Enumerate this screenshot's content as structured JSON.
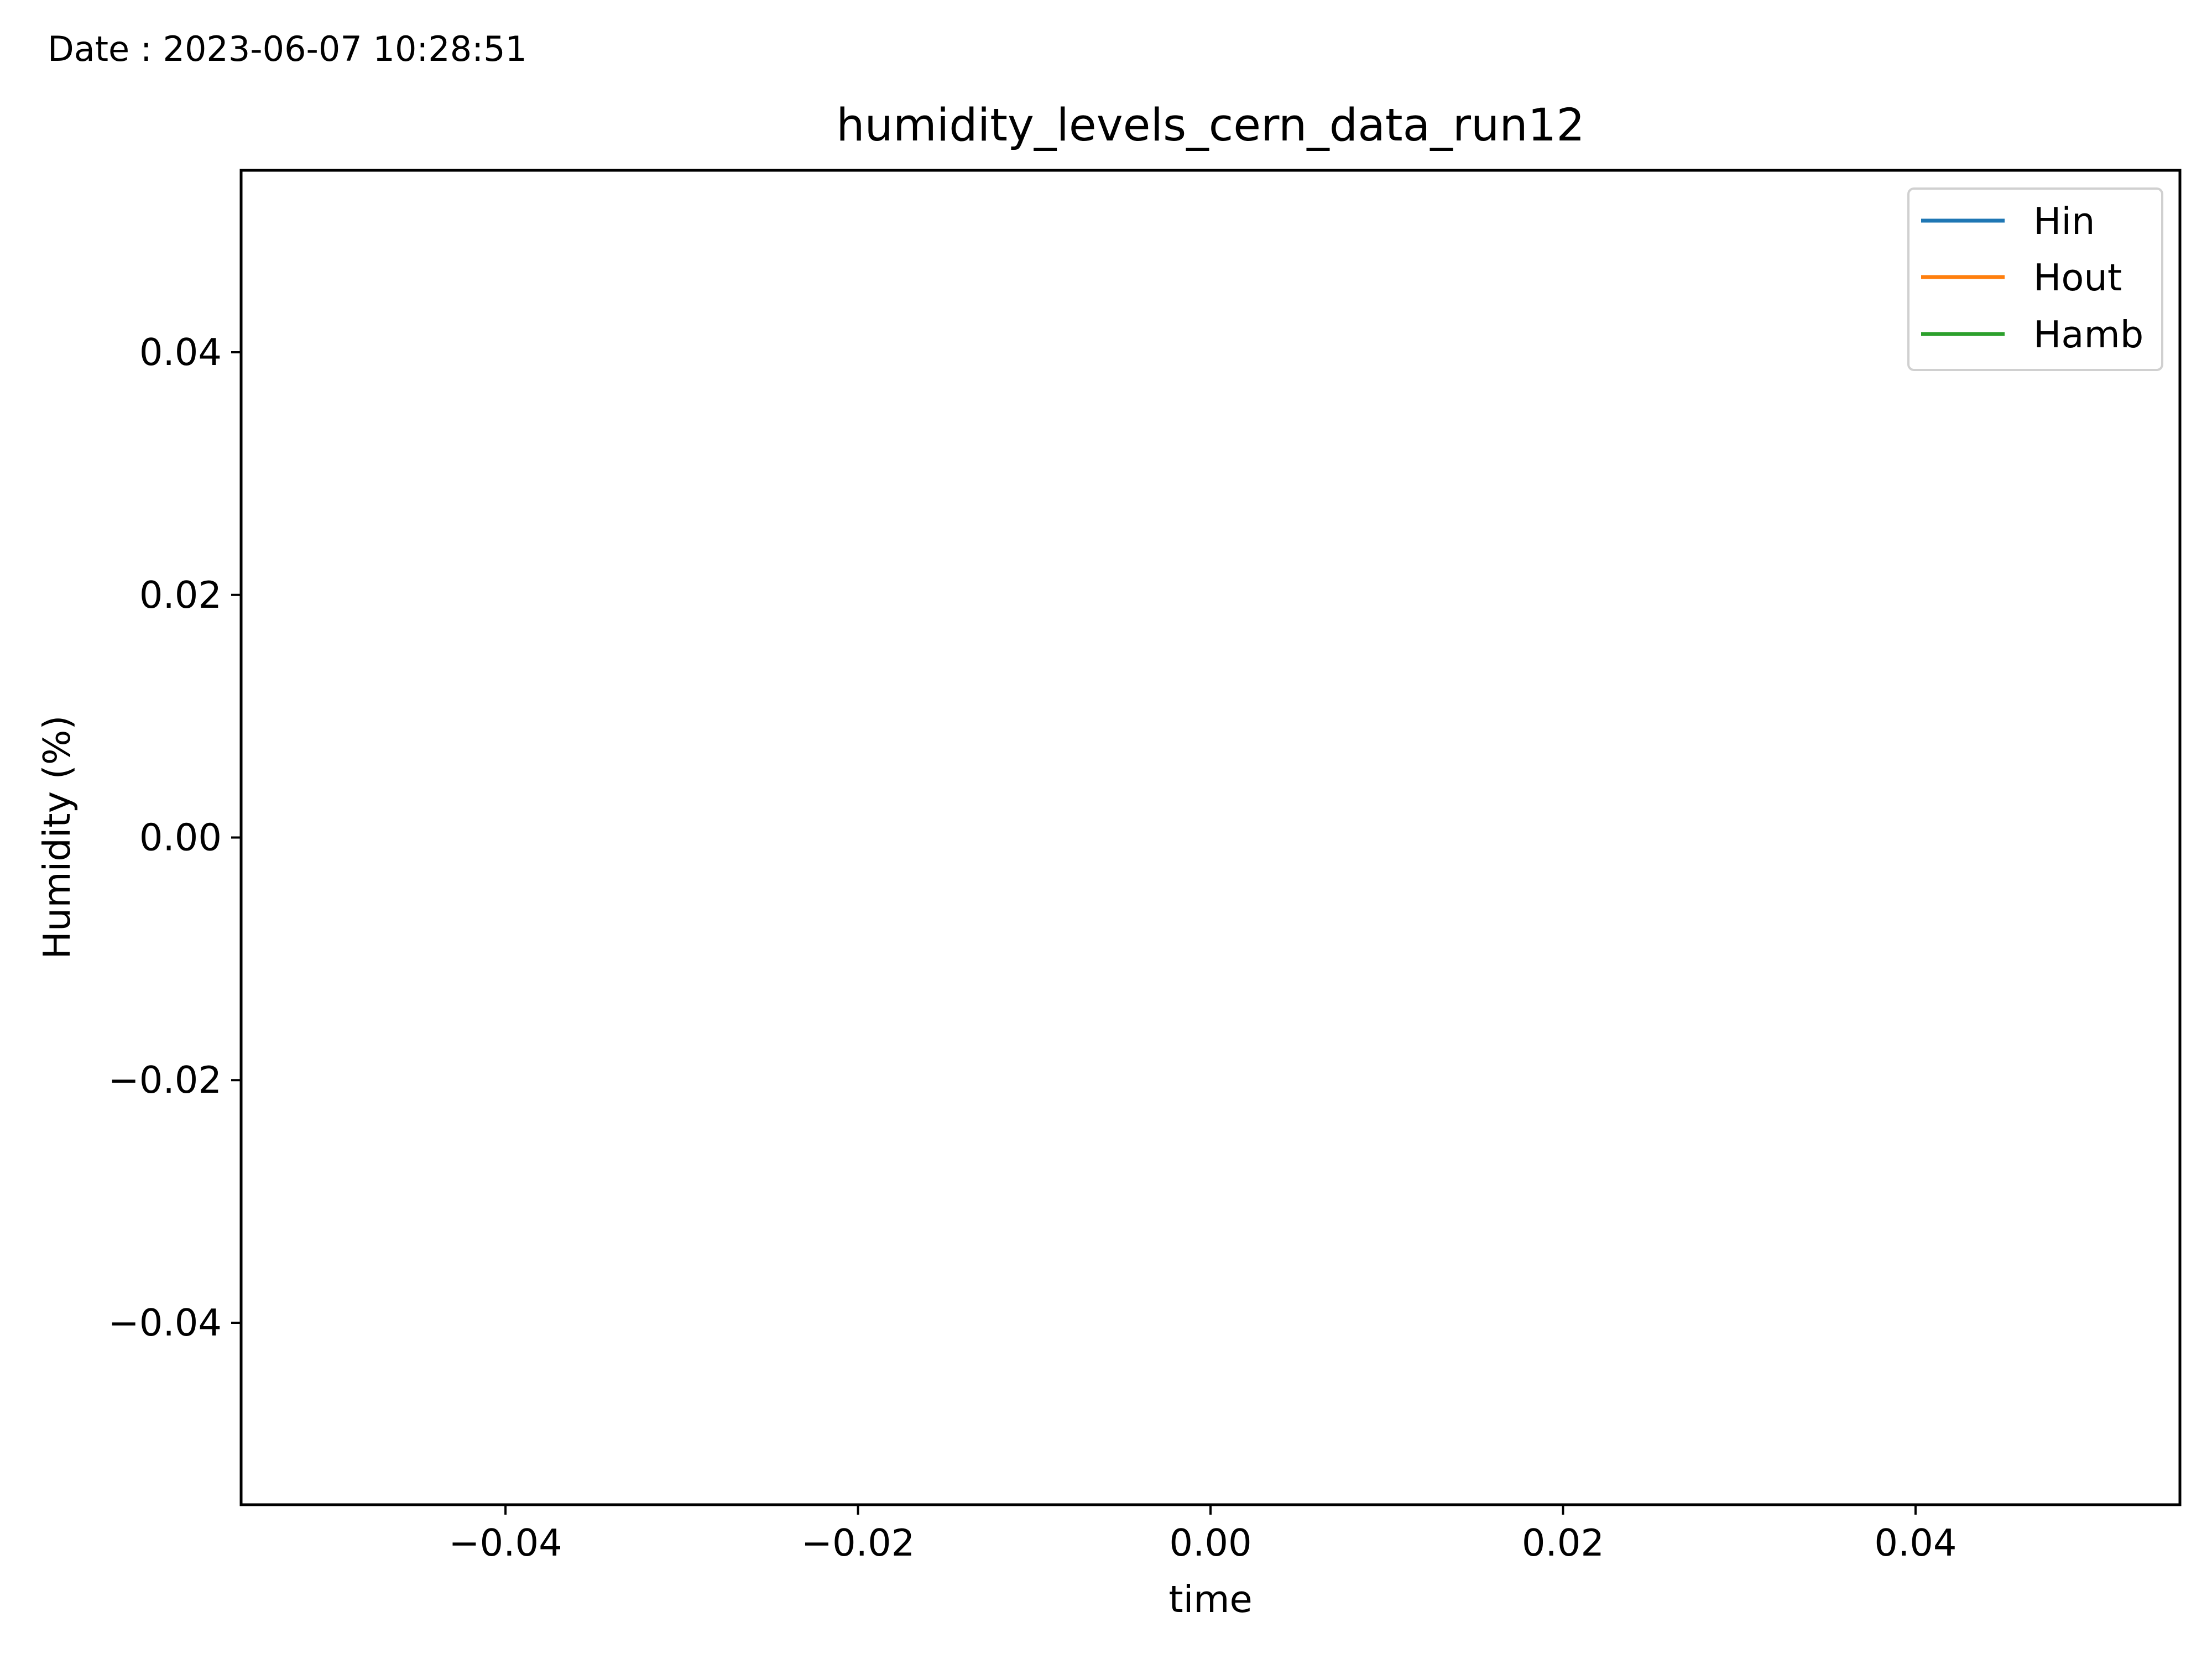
{
  "header": {
    "date_text": "Date : 2023-06-07 10:28:51"
  },
  "chart_data": {
    "type": "line",
    "title": "humidity_levels_cern_data_run12",
    "xlabel": "time",
    "ylabel": "Humidity (%)",
    "xlim": [
      -0.055,
      0.055
    ],
    "ylim": [
      -0.055,
      0.055
    ],
    "x_ticks": [
      -0.04,
      -0.02,
      0.0,
      0.02,
      0.04
    ],
    "y_ticks": [
      -0.04,
      -0.02,
      0.0,
      0.02,
      0.04
    ],
    "x_tick_labels": [
      "−0.04",
      "−0.02",
      "0.00",
      "0.02",
      "0.04"
    ],
    "y_tick_labels": [
      "−0.04",
      "−0.02",
      "0.00",
      "0.02",
      "0.04"
    ],
    "grid": false,
    "legend_position": "top-right",
    "series": [
      {
        "name": "Hin",
        "color": "#1f77b4",
        "x": [],
        "values": []
      },
      {
        "name": "Hout",
        "color": "#ff7f0e",
        "x": [],
        "values": []
      },
      {
        "name": "Hamb",
        "color": "#2ca02c",
        "x": [],
        "values": []
      }
    ]
  }
}
